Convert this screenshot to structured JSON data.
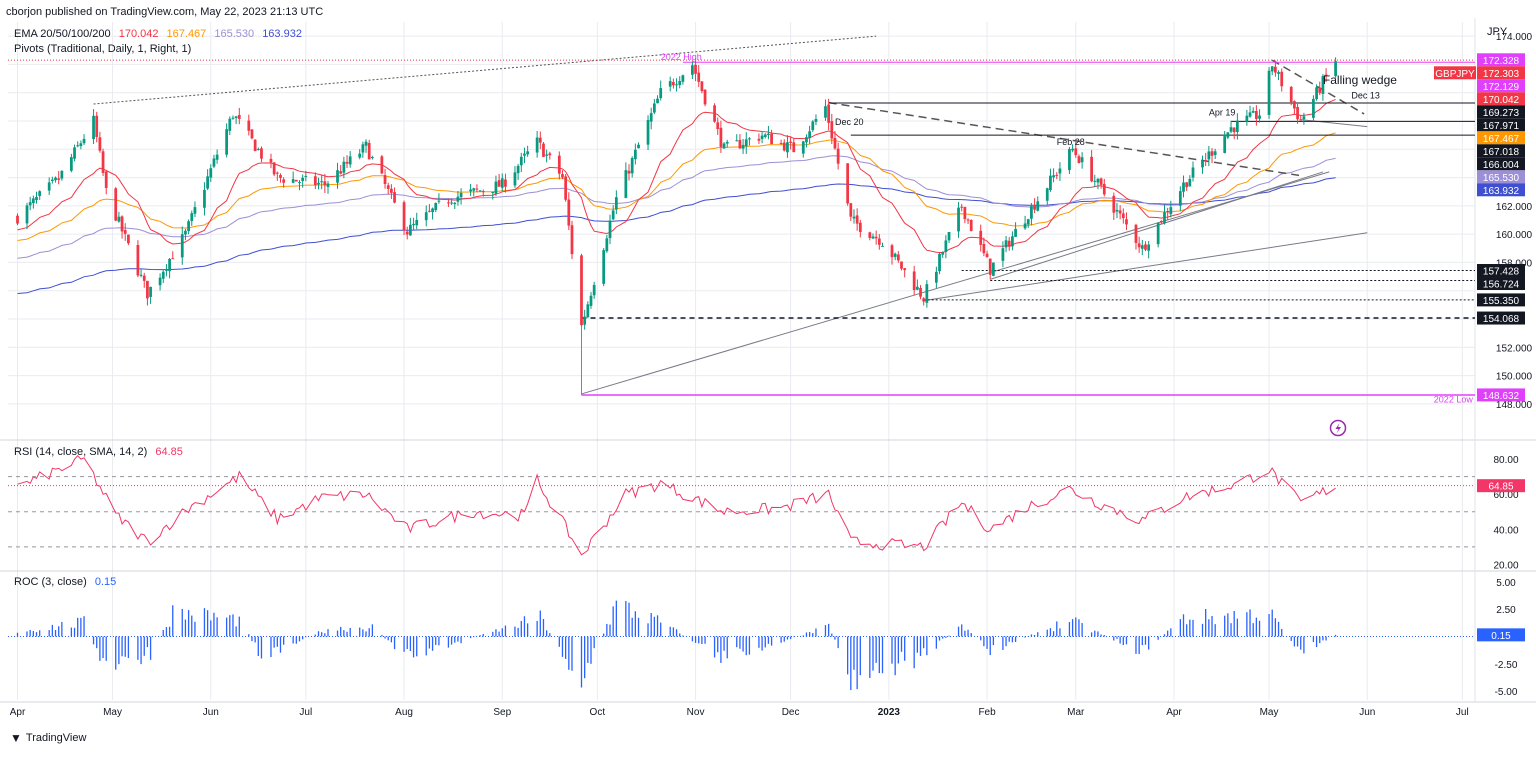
{
  "header": {
    "published": "cborjon published on TradingView.com, May 22, 2023 21:13 UTC",
    "currency": "JPY"
  },
  "legend": {
    "ema_label": "EMA 20/50/100/200",
    "ema_values": [
      "170.042",
      "167.467",
      "165.530",
      "163.932"
    ],
    "ema_colors": [
      "#f23645",
      "#ff9800",
      "#9c8fd6",
      "#3f4fd1"
    ],
    "pivots_label": "Pivots (Traditional, Daily, 1, Right, 1)"
  },
  "colors": {
    "up": "#089981",
    "down": "#f23645",
    "grid": "#e9ebf0",
    "magenta": "#e040fb",
    "rsi": "#f23667",
    "roc": "#2962ff",
    "trend": "#787b86"
  },
  "chart_data": {
    "type": "candlestick",
    "symbol": "GBPJPY",
    "price_axis": {
      "ticks": [
        "162.000",
        "160.000",
        "158.000",
        "152.000",
        "150.000",
        "148.000",
        "174.000"
      ],
      "ylim": [
        147.0,
        175.0
      ]
    },
    "x_ticks": [
      "Apr",
      "May",
      "Jun",
      "Jul",
      "Aug",
      "Sep",
      "Oct",
      "Nov",
      "Dec",
      "2023",
      "Feb",
      "Mar",
      "Apr",
      "May",
      "Jun",
      "Jul"
    ],
    "close_path": [
      [
        "2022-04-01",
        161.2
      ],
      [
        "2022-04-14",
        163.9
      ],
      [
        "2022-04-25",
        168.0
      ],
      [
        "2022-04-29",
        163.0
      ],
      [
        "2022-05-12",
        155.8
      ],
      [
        "2022-05-24",
        160.0
      ],
      [
        "2022-06-08",
        168.5
      ],
      [
        "2022-06-22",
        164.0
      ],
      [
        "2022-07-07",
        163.5
      ],
      [
        "2022-07-20",
        166.2
      ],
      [
        "2022-08-02",
        160.2
      ],
      [
        "2022-08-15",
        162.5
      ],
      [
        "2022-09-01",
        163.5
      ],
      [
        "2022-09-12",
        166.5
      ],
      [
        "2022-09-20",
        164.0
      ],
      [
        "2022-09-26",
        153.5
      ],
      [
        "2022-10-07",
        162.5
      ],
      [
        "2022-10-21",
        170.0
      ],
      [
        "2022-10-31",
        172.0
      ],
      [
        "2022-11-10",
        166.0
      ],
      [
        "2022-11-22",
        167.0
      ],
      [
        "2022-12-02",
        166.0
      ],
      [
        "2022-12-12",
        169.0
      ],
      [
        "2022-12-20",
        161.0
      ],
      [
        "2022-12-30",
        159.5
      ],
      [
        "2023-01-12",
        155.5
      ],
      [
        "2023-01-24",
        162.0
      ],
      [
        "2023-02-02",
        157.5
      ],
      [
        "2023-02-14",
        161.5
      ],
      [
        "2023-02-28",
        166.0
      ],
      [
        "2023-03-08",
        163.5
      ],
      [
        "2023-03-22",
        159.0
      ],
      [
        "2023-04-04",
        163.5
      ],
      [
        "2023-04-19",
        167.5
      ],
      [
        "2023-04-28",
        168.5
      ],
      [
        "2023-05-02",
        172.0
      ],
      [
        "2023-05-11",
        168.0
      ],
      [
        "2023-05-22",
        172.3
      ]
    ],
    "horizontal_levels": [
      {
        "label": "172.328",
        "value": 172.328,
        "color": "#e040fb"
      },
      {
        "label": "172.303",
        "value": 172.303,
        "color": "#f23645",
        "tag": "GBPJPY"
      },
      {
        "label": "172.129",
        "value": 172.129,
        "color": "#e040fb"
      },
      {
        "label": "170.042",
        "value": 170.042,
        "color": "#f23645"
      },
      {
        "label": "169.273",
        "value": 169.273,
        "color": "#131722"
      },
      {
        "label": "167.971",
        "value": 167.971,
        "color": "#131722"
      },
      {
        "label": "167.467",
        "value": 167.467,
        "color": "#ff9800"
      },
      {
        "label": "167.018",
        "value": 167.018,
        "color": "#131722"
      },
      {
        "label": "166.004",
        "value": 166.004,
        "color": "#131722"
      },
      {
        "label": "165.530",
        "value": 165.53,
        "color": "#9c8fd6"
      },
      {
        "label": "163.932",
        "value": 163.932,
        "color": "#3f4fd1"
      },
      {
        "label": "157.428",
        "value": 157.428,
        "color": "#131722"
      },
      {
        "label": "156.724",
        "value": 156.724,
        "color": "#131722"
      },
      {
        "label": "155.350",
        "value": 155.35,
        "color": "#131722"
      },
      {
        "label": "154.068",
        "value": 154.068,
        "color": "#131722"
      },
      {
        "label": "148.632",
        "value": 148.632,
        "color": "#e040fb"
      }
    ],
    "annotations": [
      {
        "text": "2022 High",
        "date": "2022-10-21",
        "value": 172.3
      },
      {
        "text": "Falling wedge",
        "date": "2023-05-18",
        "value": 170.6
      },
      {
        "text": "Dec 13",
        "date": "2023-05-27",
        "value": 169.6
      },
      {
        "text": "Apr 19",
        "date": "2023-04-12",
        "value": 168.4
      },
      {
        "text": "Dec 20",
        "date": "2022-12-15",
        "value": 167.7
      },
      {
        "text": "Feb 28",
        "date": "2023-02-23",
        "value": 166.3
      },
      {
        "text": "2022 Low",
        "date": "2023-06-22",
        "value": 148.1
      }
    ],
    "rsi": {
      "label": "RSI (14, close, SMA, 14, 2)",
      "value": "64.85",
      "ticks": [
        "80.00",
        "60.00",
        "40.00",
        "20.00"
      ],
      "ylim": [
        18,
        88
      ],
      "levels": [
        70,
        50,
        30
      ],
      "path": [
        [
          "2022-04-01",
          64
        ],
        [
          "2022-04-22",
          80
        ],
        [
          "2022-05-02",
          48
        ],
        [
          "2022-05-12",
          33
        ],
        [
          "2022-05-25",
          52
        ],
        [
          "2022-06-10",
          70
        ],
        [
          "2022-06-22",
          46
        ],
        [
          "2022-07-06",
          58
        ],
        [
          "2022-07-20",
          60
        ],
        [
          "2022-08-02",
          40
        ],
        [
          "2022-08-22",
          50
        ],
        [
          "2022-09-08",
          48
        ],
        [
          "2022-09-12",
          68
        ],
        [
          "2022-09-23",
          35
        ],
        [
          "2022-09-26",
          25
        ],
        [
          "2022-10-10",
          60
        ],
        [
          "2022-10-21",
          66
        ],
        [
          "2022-11-10",
          50
        ],
        [
          "2022-11-28",
          52
        ],
        [
          "2022-12-13",
          60
        ],
        [
          "2022-12-20",
          33
        ],
        [
          "2023-01-12",
          30
        ],
        [
          "2023-01-24",
          55
        ],
        [
          "2023-02-02",
          40
        ],
        [
          "2023-02-14",
          53
        ],
        [
          "2023-02-27",
          63
        ],
        [
          "2023-03-08",
          55
        ],
        [
          "2023-03-22",
          45
        ],
        [
          "2023-04-04",
          58
        ],
        [
          "2023-04-21",
          66
        ],
        [
          "2023-05-01",
          74
        ],
        [
          "2023-05-11",
          55
        ],
        [
          "2023-05-22",
          64.85
        ]
      ]
    },
    "roc": {
      "label": "ROC (3, close)",
      "value": "0.15",
      "ticks": [
        "5.00",
        "2.50",
        "-2.50",
        "-5.00"
      ],
      "ylim": [
        -5.8,
        5.8
      ],
      "path": [
        [
          "2022-04-01",
          0.5
        ],
        [
          "2022-04-22",
          1.5
        ],
        [
          "2022-04-28",
          -3.5
        ],
        [
          "2022-05-13",
          -2.0
        ],
        [
          "2022-05-20",
          2.6
        ],
        [
          "2022-06-10",
          1.8
        ],
        [
          "2022-06-17",
          -2.0
        ],
        [
          "2022-07-08",
          0.8
        ],
        [
          "2022-07-22",
          1.0
        ],
        [
          "2022-08-02",
          -2.2
        ],
        [
          "2022-09-13",
          2.0
        ],
        [
          "2022-09-26",
          -4.8
        ],
        [
          "2022-10-07",
          3.4
        ],
        [
          "2022-10-21",
          1.5
        ],
        [
          "2022-11-10",
          -2.3
        ],
        [
          "2022-12-13",
          1.0
        ],
        [
          "2022-12-20",
          -4.3
        ],
        [
          "2023-01-12",
          -2.1
        ],
        [
          "2023-01-24",
          1.3
        ],
        [
          "2023-02-02",
          -1.5
        ],
        [
          "2023-02-27",
          1.7
        ],
        [
          "2023-03-22",
          -1.6
        ],
        [
          "2023-04-04",
          1.9
        ],
        [
          "2023-05-01",
          2.5
        ],
        [
          "2023-05-11",
          -1.6
        ],
        [
          "2023-05-22",
          0.15
        ]
      ]
    }
  },
  "footer": {
    "brand": "TradingView"
  }
}
